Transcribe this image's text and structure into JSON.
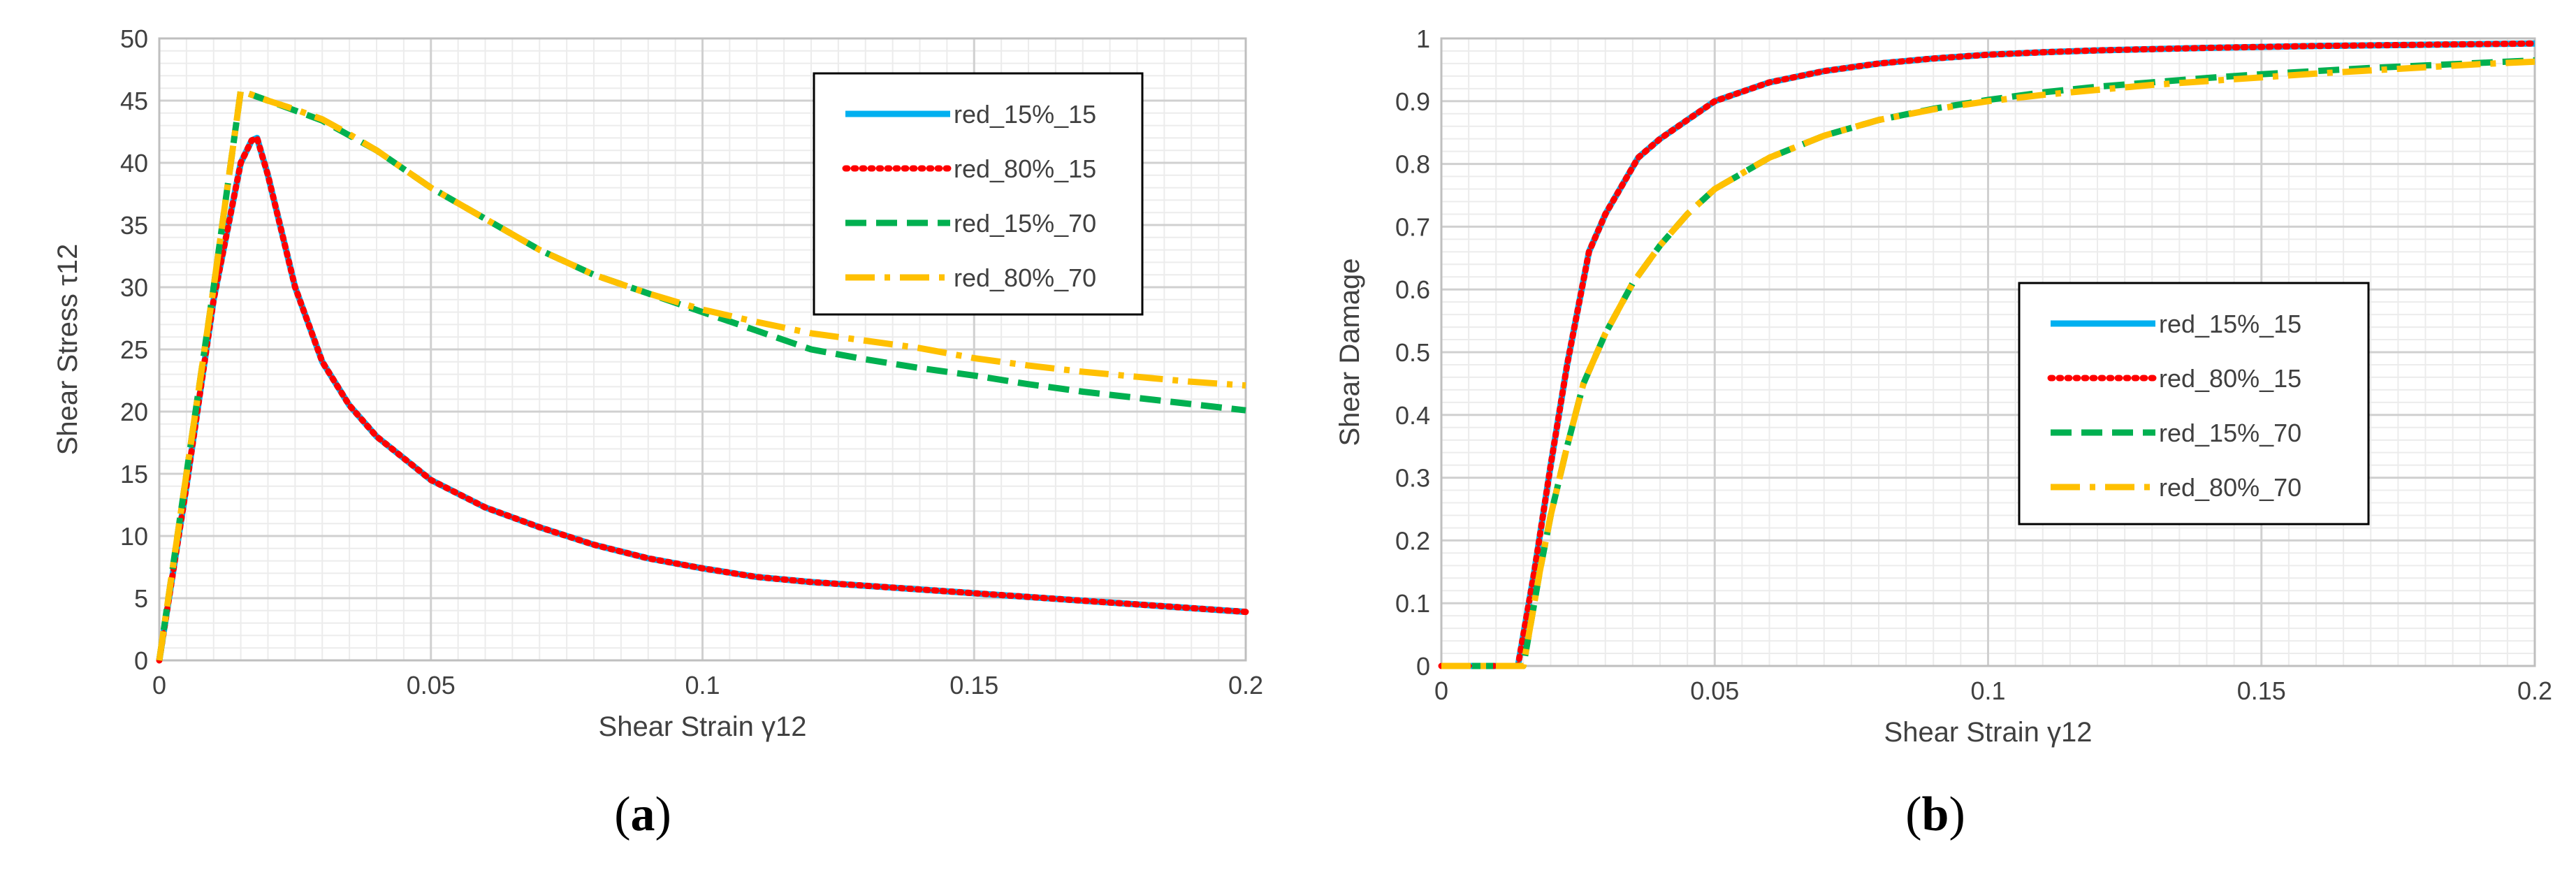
{
  "chart_data": [
    {
      "type": "line",
      "panel_label_open": "(",
      "panel_label_letter": "a",
      "panel_label_close": ")",
      "xlabel": "Shear Strain γ12",
      "ylabel": "Shear Stress τ12",
      "xlim": [
        0,
        0.2
      ],
      "ylim": [
        0,
        50
      ],
      "x_ticks": [
        0,
        0.05,
        0.1,
        0.15,
        0.2
      ],
      "x_tick_labels": [
        "0",
        "0.05",
        "0.1",
        "0.15",
        "0.2"
      ],
      "y_ticks": [
        0,
        5,
        10,
        15,
        20,
        25,
        30,
        35,
        40,
        45,
        50
      ],
      "y_tick_labels": [
        "0",
        "5",
        "10",
        "15",
        "20",
        "25",
        "30",
        "35",
        "40",
        "45",
        "50"
      ],
      "grid": true,
      "legend_position": "top-right",
      "series": [
        {
          "name": "red_15%_15",
          "color": "#00B0F0",
          "dash": "solid",
          "x": [
            0,
            0.005,
            0.01,
            0.015,
            0.017,
            0.018,
            0.02,
            0.025,
            0.03,
            0.035,
            0.04,
            0.05,
            0.06,
            0.07,
            0.08,
            0.09,
            0.1,
            0.11,
            0.12,
            0.13,
            0.14,
            0.15,
            0.16,
            0.17,
            0.18,
            0.19,
            0.2
          ],
          "y": [
            0,
            14,
            29,
            40,
            41.8,
            42,
            39,
            30,
            24,
            20.5,
            18,
            14.5,
            12.3,
            10.7,
            9.3,
            8.2,
            7.4,
            6.7,
            6.3,
            6.0,
            5.7,
            5.4,
            5.1,
            4.8,
            4.5,
            4.2,
            3.9
          ]
        },
        {
          "name": "red_80%_15",
          "color": "#FF0000",
          "dash": "dotted",
          "x": [
            0,
            0.005,
            0.01,
            0.015,
            0.017,
            0.018,
            0.02,
            0.025,
            0.03,
            0.035,
            0.04,
            0.05,
            0.06,
            0.07,
            0.08,
            0.09,
            0.1,
            0.11,
            0.12,
            0.13,
            0.14,
            0.15,
            0.16,
            0.17,
            0.18,
            0.19,
            0.2
          ],
          "y": [
            0,
            14,
            29,
            40,
            41.8,
            42,
            39,
            30,
            24,
            20.5,
            18,
            14.5,
            12.3,
            10.7,
            9.3,
            8.2,
            7.4,
            6.7,
            6.3,
            6.0,
            5.7,
            5.4,
            5.1,
            4.8,
            4.5,
            4.2,
            3.9
          ]
        },
        {
          "name": "red_15%_70",
          "color": "#00B050",
          "dash": "dashed",
          "x": [
            0,
            0.005,
            0.01,
            0.015,
            0.02,
            0.025,
            0.03,
            0.035,
            0.04,
            0.045,
            0.05,
            0.06,
            0.07,
            0.08,
            0.09,
            0.1,
            0.11,
            0.12,
            0.13,
            0.14,
            0.15,
            0.16,
            0.17,
            0.18,
            0.19,
            0.2
          ],
          "y": [
            0,
            15,
            30,
            45.8,
            45,
            44.2,
            43.4,
            42.2,
            41,
            39.5,
            38,
            35.5,
            33,
            31,
            29.5,
            28,
            26.5,
            25,
            24.2,
            23.5,
            22.9,
            22.2,
            21.6,
            21.1,
            20.6,
            20.1
          ]
        },
        {
          "name": "red_80%_70",
          "color": "#FFC000",
          "dash": "dashdot",
          "x": [
            0,
            0.005,
            0.01,
            0.015,
            0.02,
            0.025,
            0.03,
            0.035,
            0.04,
            0.045,
            0.05,
            0.06,
            0.07,
            0.08,
            0.09,
            0.1,
            0.11,
            0.12,
            0.13,
            0.14,
            0.15,
            0.16,
            0.17,
            0.18,
            0.19,
            0.2
          ],
          "y": [
            0,
            15,
            30,
            45.8,
            45,
            44.3,
            43.5,
            42.3,
            41,
            39.5,
            38,
            35.5,
            33,
            31,
            29.5,
            28.2,
            27.2,
            26.3,
            25.7,
            25.1,
            24.3,
            23.7,
            23.2,
            22.8,
            22.4,
            22.1
          ]
        }
      ]
    },
    {
      "type": "line",
      "panel_label_open": "(",
      "panel_label_letter": "b",
      "panel_label_close": ")",
      "xlabel": "Shear Strain γ12",
      "ylabel": "Shear Damage",
      "xlim": [
        0,
        0.2
      ],
      "ylim": [
        0,
        1
      ],
      "x_ticks": [
        0,
        0.05,
        0.1,
        0.15,
        0.2
      ],
      "x_tick_labels": [
        "0",
        "0.05",
        "0.1",
        "0.15",
        "0.2"
      ],
      "y_ticks": [
        0,
        0.1,
        0.2,
        0.3,
        0.4,
        0.5,
        0.6,
        0.7,
        0.8,
        0.9,
        1
      ],
      "y_tick_labels": [
        "0",
        "0.1",
        "0.2",
        "0.3",
        "0.4",
        "0.5",
        "0.6",
        "0.7",
        "0.8",
        "0.9",
        "1"
      ],
      "grid": true,
      "legend_position": "center-right",
      "series": [
        {
          "name": "red_15%_15",
          "color": "#00B0F0",
          "dash": "solid",
          "x": [
            0,
            0.014,
            0.015,
            0.017,
            0.02,
            0.023,
            0.027,
            0.03,
            0.036,
            0.04,
            0.045,
            0.05,
            0.055,
            0.06,
            0.07,
            0.08,
            0.09,
            0.1,
            0.11,
            0.12,
            0.14,
            0.16,
            0.18,
            0.2
          ],
          "y": [
            0,
            0,
            0.05,
            0.15,
            0.32,
            0.48,
            0.66,
            0.72,
            0.81,
            0.84,
            0.87,
            0.9,
            0.915,
            0.93,
            0.948,
            0.96,
            0.968,
            0.974,
            0.978,
            0.981,
            0.985,
            0.988,
            0.99,
            0.992
          ]
        },
        {
          "name": "red_80%_15",
          "color": "#FF0000",
          "dash": "dotted",
          "x": [
            0,
            0.014,
            0.015,
            0.017,
            0.02,
            0.023,
            0.027,
            0.03,
            0.036,
            0.04,
            0.045,
            0.05,
            0.055,
            0.06,
            0.07,
            0.08,
            0.09,
            0.1,
            0.11,
            0.12,
            0.14,
            0.16,
            0.18,
            0.2
          ],
          "y": [
            0,
            0,
            0.05,
            0.15,
            0.32,
            0.48,
            0.66,
            0.72,
            0.81,
            0.84,
            0.87,
            0.9,
            0.915,
            0.93,
            0.948,
            0.96,
            0.968,
            0.974,
            0.978,
            0.981,
            0.985,
            0.988,
            0.99,
            0.992
          ]
        },
        {
          "name": "red_15%_70",
          "color": "#00B050",
          "dash": "dashed",
          "x": [
            0,
            0.015,
            0.016,
            0.018,
            0.02,
            0.023,
            0.026,
            0.03,
            0.035,
            0.04,
            0.045,
            0.05,
            0.06,
            0.07,
            0.08,
            0.09,
            0.1,
            0.11,
            0.12,
            0.13,
            0.14,
            0.15,
            0.16,
            0.17,
            0.18,
            0.19,
            0.2
          ],
          "y": [
            0,
            0,
            0.05,
            0.15,
            0.24,
            0.35,
            0.45,
            0.53,
            0.61,
            0.67,
            0.72,
            0.76,
            0.81,
            0.845,
            0.87,
            0.888,
            0.902,
            0.914,
            0.923,
            0.93,
            0.937,
            0.943,
            0.948,
            0.953,
            0.957,
            0.961,
            0.965
          ]
        },
        {
          "name": "red_80%_70",
          "color": "#FFC000",
          "dash": "dashdot",
          "x": [
            0,
            0.015,
            0.016,
            0.018,
            0.02,
            0.023,
            0.026,
            0.03,
            0.035,
            0.04,
            0.045,
            0.05,
            0.06,
            0.07,
            0.08,
            0.09,
            0.1,
            0.11,
            0.12,
            0.13,
            0.14,
            0.15,
            0.16,
            0.17,
            0.18,
            0.19,
            0.2
          ],
          "y": [
            0,
            0,
            0.05,
            0.15,
            0.24,
            0.35,
            0.45,
            0.53,
            0.61,
            0.67,
            0.72,
            0.76,
            0.81,
            0.845,
            0.87,
            0.887,
            0.9,
            0.91,
            0.918,
            0.926,
            0.932,
            0.938,
            0.944,
            0.949,
            0.954,
            0.959,
            0.963
          ]
        }
      ]
    }
  ]
}
